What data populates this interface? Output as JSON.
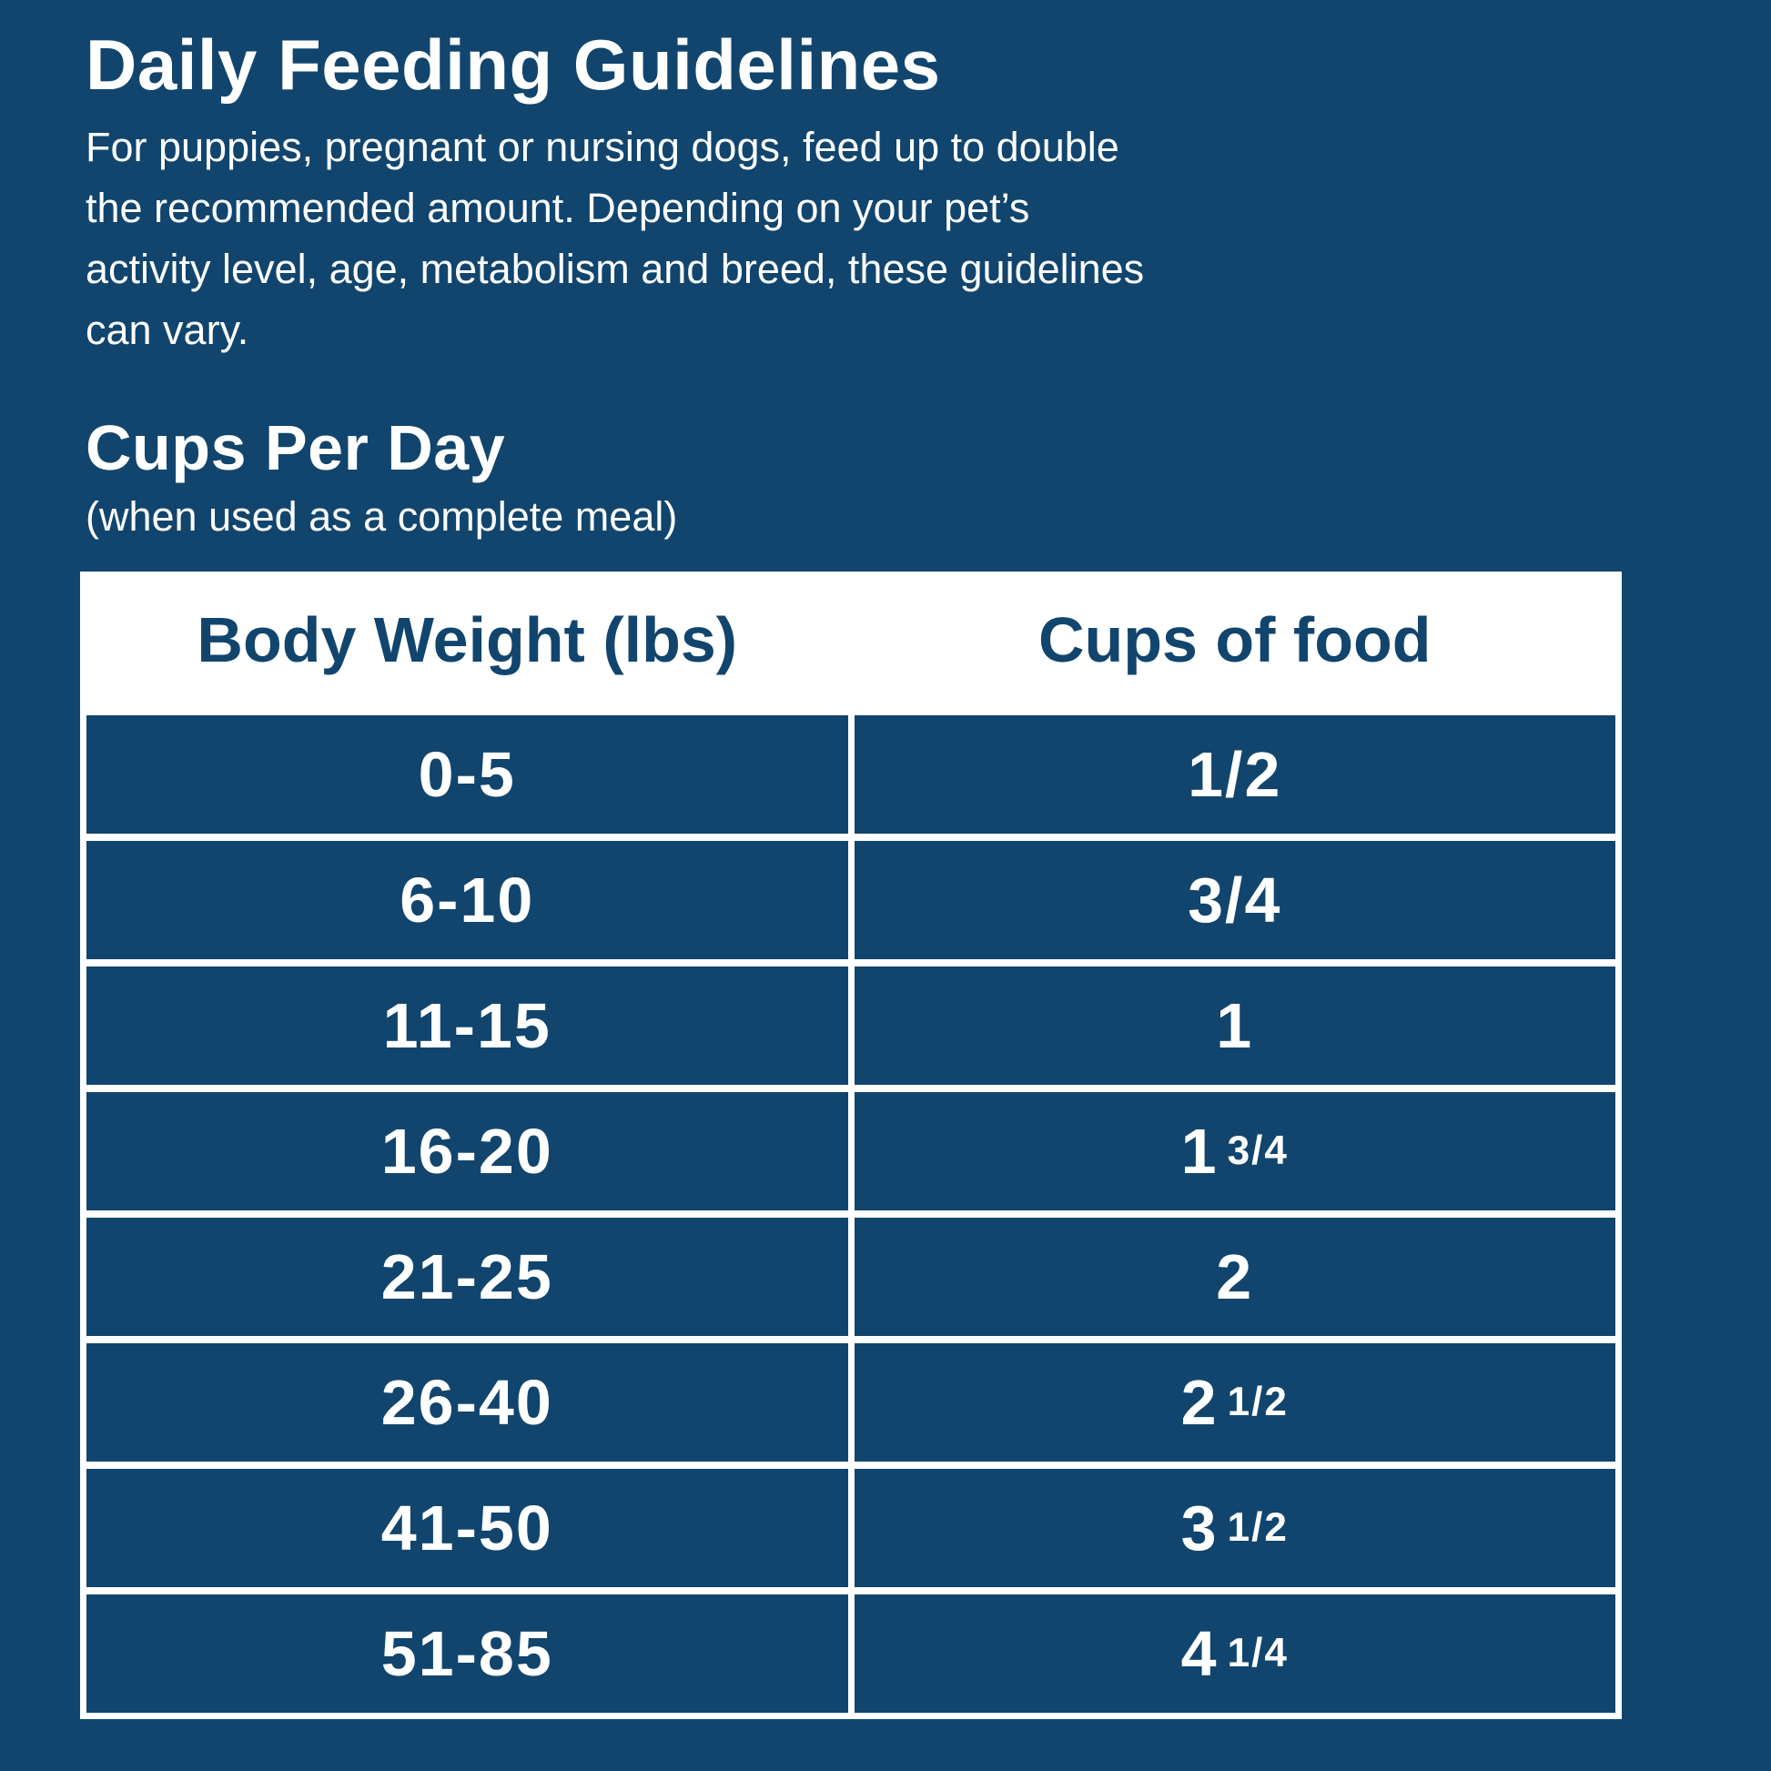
{
  "page": {
    "title": "Daily Feeding Guidelines",
    "description_lines": [
      "For puppies, pregnant or nursing dogs, feed up to double",
      "the recommended amount. Depending on your pet’s",
      "activity level, age, metabolism and breed, these guidelines",
      "can vary."
    ],
    "section_heading": "Cups Per Day",
    "section_subheading": "(when used as a complete meal)",
    "colors": {
      "background": "#11456D",
      "text": "#FFFFFF",
      "table_header_background": "#FFFFFF",
      "table_header_text": "#11456D",
      "table_cell_background": "#11456D",
      "table_cell_text": "#FFFFFF",
      "table_divider": "#FFFFFF"
    }
  },
  "table": {
    "columns": [
      "Body Weight (lbs)",
      "Cups of food"
    ],
    "rows": [
      {
        "weight": "0-5",
        "cups_main": "1/2",
        "cups_fraction": ""
      },
      {
        "weight": "6-10",
        "cups_main": "3/4",
        "cups_fraction": ""
      },
      {
        "weight": "11-15",
        "cups_main": "1",
        "cups_fraction": ""
      },
      {
        "weight": "16-20",
        "cups_main": "1",
        "cups_fraction": "3/4"
      },
      {
        "weight": "21-25",
        "cups_main": "2",
        "cups_fraction": ""
      },
      {
        "weight": "26-40",
        "cups_main": "2",
        "cups_fraction": "1/2"
      },
      {
        "weight": "41-50",
        "cups_main": "3",
        "cups_fraction": "1/2"
      },
      {
        "weight": "51-85",
        "cups_main": "4",
        "cups_fraction": "1/4"
      }
    ]
  }
}
